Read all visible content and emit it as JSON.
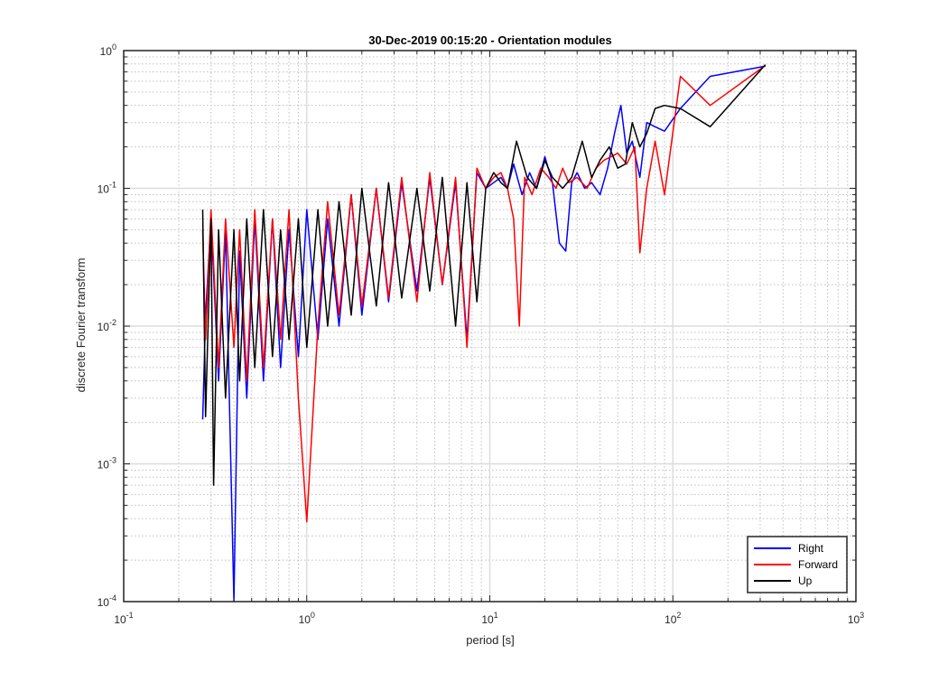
{
  "chart_data": {
    "type": "line",
    "title": "30-Dec-2019 00:15:20 - Orientation modules",
    "xlabel": "period [s]",
    "ylabel": "discrete Fourier transform",
    "xscale": "log",
    "yscale": "log",
    "xlim": [
      0.1,
      1000
    ],
    "ylim": [
      0.0001,
      1
    ],
    "grid": true,
    "minor_grid": true,
    "legend_position": "bottom-right",
    "x_tick_labels": [
      {
        "base": "10",
        "exp": "-1"
      },
      {
        "base": "10",
        "exp": "0"
      },
      {
        "base": "10",
        "exp": "1"
      },
      {
        "base": "10",
        "exp": "2"
      },
      {
        "base": "10",
        "exp": "3"
      }
    ],
    "y_tick_labels": [
      {
        "base": "10",
        "exp": "-4"
      },
      {
        "base": "10",
        "exp": "-3"
      },
      {
        "base": "10",
        "exp": "-2"
      },
      {
        "base": "10",
        "exp": "-1"
      },
      {
        "base": "10",
        "exp": "0"
      }
    ],
    "series": [
      {
        "name": "Right",
        "color": "#0000ff",
        "x": [
          0.27,
          0.28,
          0.3,
          0.33,
          0.36,
          0.4,
          0.43,
          0.47,
          0.52,
          0.58,
          0.65,
          0.72,
          0.8,
          0.9,
          1.0,
          1.15,
          1.3,
          1.5,
          1.75,
          2.0,
          2.4,
          2.8,
          3.3,
          4.0,
          4.7,
          5.5,
          6.5,
          7.5,
          8.5,
          9.5,
          10.5,
          11.5,
          12.5,
          13.5,
          15,
          16.5,
          18,
          20,
          22,
          24,
          26,
          28,
          30,
          33,
          36,
          40,
          44,
          48,
          52,
          56,
          60,
          66,
          72,
          80,
          90,
          110,
          160,
          320
        ],
        "y": [
          0.0021,
          0.012,
          0.06,
          0.004,
          0.05,
          0.0001,
          0.035,
          0.003,
          0.06,
          0.004,
          0.06,
          0.005,
          0.05,
          0.006,
          0.07,
          0.008,
          0.06,
          0.01,
          0.09,
          0.012,
          0.1,
          0.015,
          0.11,
          0.018,
          0.12,
          0.02,
          0.11,
          0.008,
          0.13,
          0.1,
          0.11,
          0.12,
          0.1,
          0.15,
          0.09,
          0.13,
          0.1,
          0.17,
          0.11,
          0.04,
          0.035,
          0.11,
          0.13,
          0.1,
          0.11,
          0.09,
          0.14,
          0.25,
          0.4,
          0.18,
          0.22,
          0.12,
          0.3,
          0.28,
          0.26,
          0.38,
          0.65,
          0.77
        ]
      },
      {
        "name": "Forward",
        "color": "#ff0000",
        "x": [
          0.27,
          0.28,
          0.3,
          0.33,
          0.36,
          0.4,
          0.43,
          0.47,
          0.52,
          0.58,
          0.65,
          0.72,
          0.8,
          0.9,
          1.0,
          1.15,
          1.3,
          1.5,
          1.75,
          2.0,
          2.4,
          2.8,
          3.3,
          4.0,
          4.7,
          5.5,
          6.5,
          7.5,
          8.5,
          9.5,
          10.5,
          11.5,
          12.5,
          13.5,
          14.5,
          15.5,
          17,
          19,
          21,
          23,
          25,
          27,
          30,
          34,
          38,
          42,
          46,
          50,
          56,
          62,
          66,
          72,
          80,
          90,
          110,
          160,
          320
        ],
        "y": [
          0.05,
          0.008,
          0.07,
          0.005,
          0.06,
          0.007,
          0.05,
          0.004,
          0.07,
          0.005,
          0.06,
          0.008,
          0.07,
          0.003,
          0.00038,
          0.01,
          0.08,
          0.012,
          0.09,
          0.014,
          0.1,
          0.016,
          0.12,
          0.015,
          0.13,
          0.02,
          0.12,
          0.007,
          0.14,
          0.1,
          0.12,
          0.13,
          0.1,
          0.06,
          0.01,
          0.12,
          0.09,
          0.14,
          0.12,
          0.1,
          0.14,
          0.11,
          0.12,
          0.1,
          0.14,
          0.16,
          0.17,
          0.18,
          0.15,
          0.2,
          0.034,
          0.1,
          0.22,
          0.09,
          0.65,
          0.4,
          0.78
        ]
      },
      {
        "name": "Up",
        "color": "#000000",
        "x": [
          0.27,
          0.28,
          0.3,
          0.31,
          0.33,
          0.36,
          0.4,
          0.43,
          0.47,
          0.52,
          0.58,
          0.65,
          0.72,
          0.8,
          0.9,
          1.0,
          1.15,
          1.3,
          1.5,
          1.75,
          2.0,
          2.4,
          2.8,
          3.3,
          4.0,
          4.7,
          5.5,
          6.5,
          7.5,
          8.5,
          9.5,
          10.5,
          11.5,
          12.5,
          14,
          16,
          18,
          20,
          22,
          25,
          28,
          32,
          36,
          40,
          45,
          50,
          55,
          60,
          66,
          72,
          80,
          90,
          110,
          160,
          320
        ],
        "y": [
          0.07,
          0.0022,
          0.06,
          0.0007,
          0.05,
          0.003,
          0.05,
          0.004,
          0.06,
          0.005,
          0.07,
          0.006,
          0.05,
          0.008,
          0.06,
          0.007,
          0.07,
          0.01,
          0.08,
          0.012,
          0.1,
          0.014,
          0.11,
          0.016,
          0.1,
          0.018,
          0.12,
          0.01,
          0.11,
          0.015,
          0.1,
          0.13,
          0.11,
          0.1,
          0.22,
          0.12,
          0.1,
          0.16,
          0.12,
          0.1,
          0.12,
          0.22,
          0.12,
          0.16,
          0.2,
          0.14,
          0.15,
          0.3,
          0.2,
          0.25,
          0.38,
          0.4,
          0.38,
          0.28,
          0.79
        ]
      }
    ]
  }
}
